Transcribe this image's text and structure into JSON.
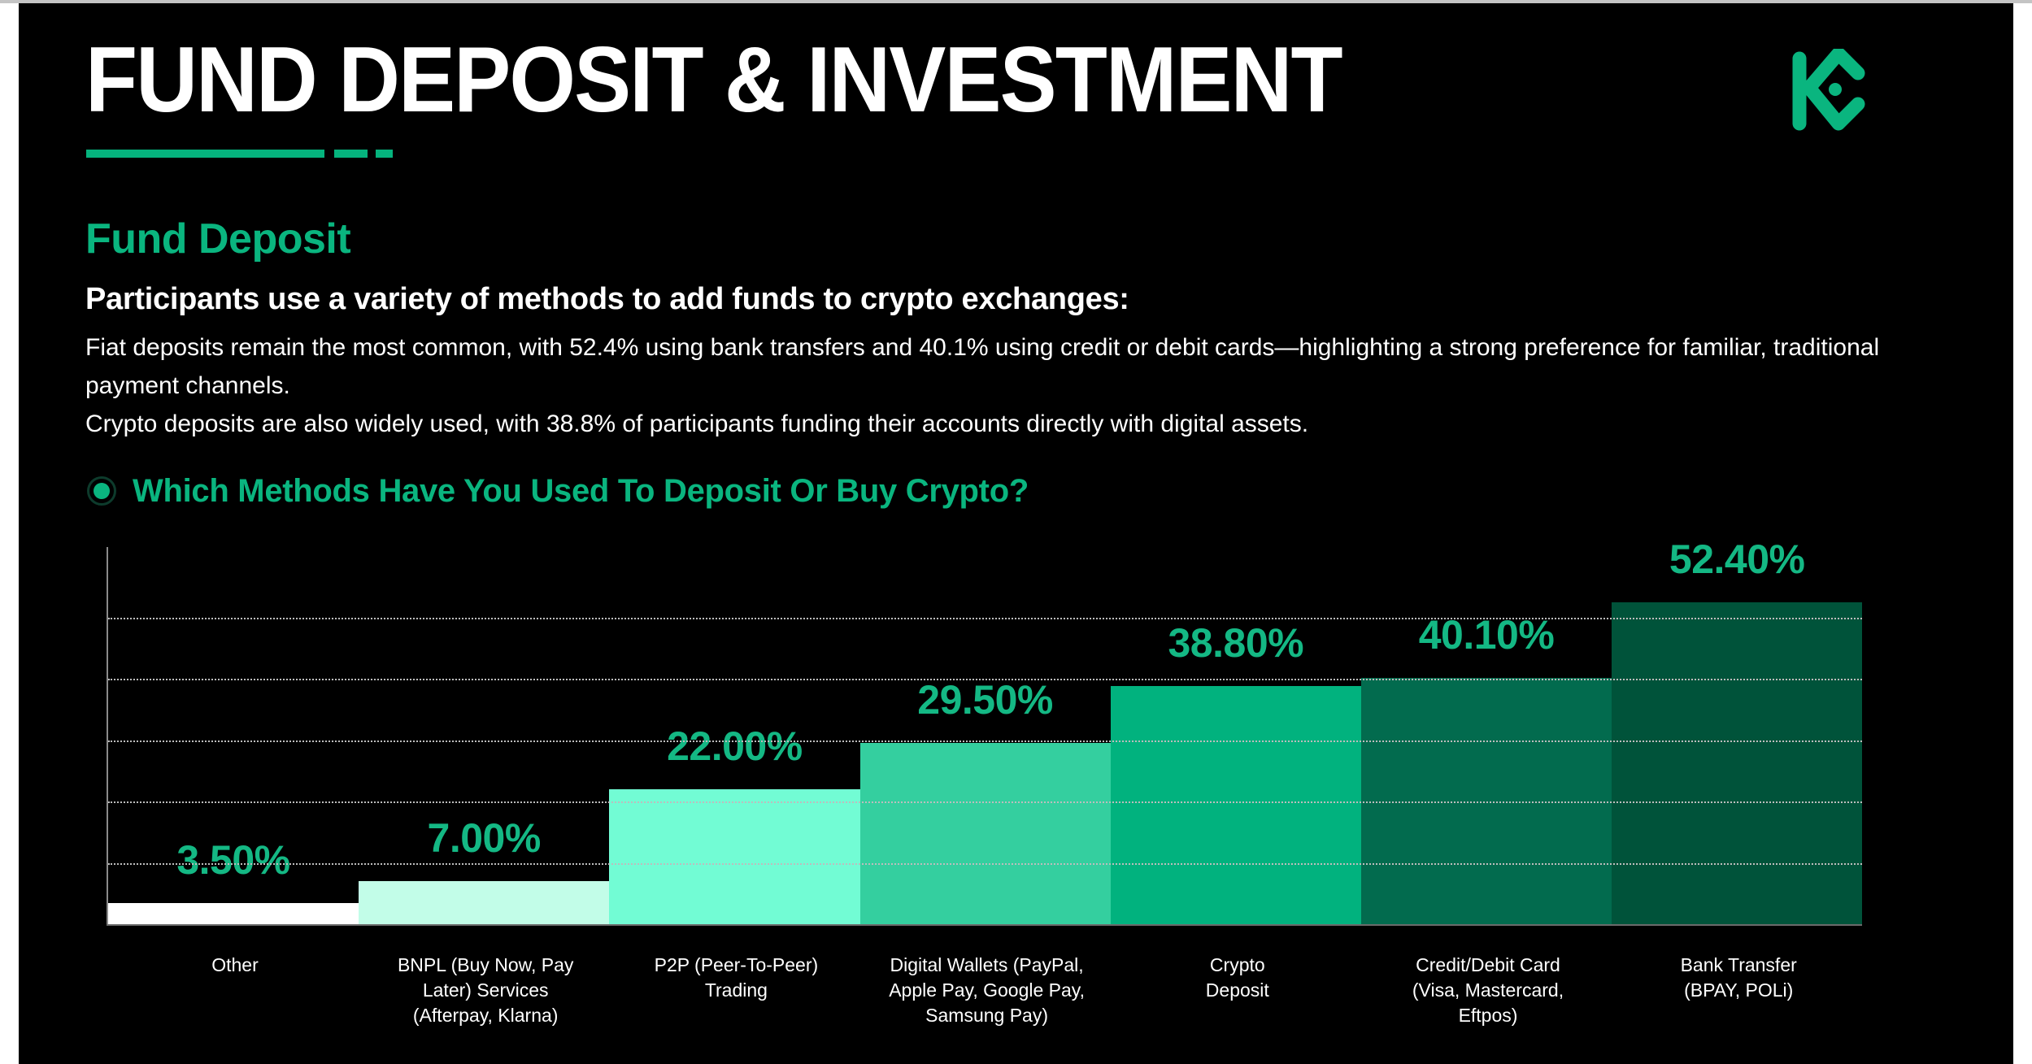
{
  "header": {
    "title": "FUND DEPOSIT & INVESTMENT",
    "logo": "kucoin-logo-icon"
  },
  "section": {
    "title": "Fund Deposit",
    "lead": "Participants use a variety of methods to add funds to crypto exchanges:",
    "paragraphs": [
      "Fiat deposits remain the most common, with 52.4% using bank transfers and 40.1% using credit or debit cards—highlighting a strong preference for familiar, traditional payment channels.",
      "Crypto deposits are also widely used, with 38.8% of participants funding their accounts directly with digital assets."
    ],
    "question": "Which Methods Have You Used To Deposit Or Buy Crypto?",
    "question_icon": "radio-selected-icon"
  },
  "colors": {
    "background": "#000000",
    "accent": "#0ab57f",
    "value_label": "#14b884",
    "bars": [
      "#ffffff",
      "#c2fde8",
      "#72fcd4",
      "#34cf9f",
      "#01b27e",
      "#026b4e",
      "#00533a"
    ]
  },
  "chart_data": {
    "type": "bar",
    "title": "Which Methods Have You Used To Deposit Or Buy Crypto?",
    "xlabel": "",
    "ylabel": "",
    "categories": [
      "Other",
      "BNPL (Buy Now, Pay Later) Services (Afterpay, Klarna)",
      "P2P (Peer-To-Peer) Trading",
      "Digital Wallets (PayPal, Apple Pay, Google Pay, Samsung Pay)",
      "Crypto Deposit",
      "Credit/Debit Card (Visa, Mastercard, Eftpos)",
      "Bank Transfer (BPAY, POLi)"
    ],
    "category_lines": [
      [
        "Other"
      ],
      [
        "BNPL (Buy Now, Pay",
        "Later) Services",
        "(Afterpay, Klarna)"
      ],
      [
        "P2P (Peer-To-Peer)",
        "Trading"
      ],
      [
        "Digital Wallets (PayPal,",
        "Apple Pay, Google Pay,",
        "Samsung Pay)"
      ],
      [
        "Crypto",
        "Deposit"
      ],
      [
        "Credit/Debit Card",
        "(Visa, Mastercard,",
        "Eftpos)"
      ],
      [
        "Bank Transfer",
        "(BPAY, POLi)"
      ]
    ],
    "values": [
      3.5,
      7.0,
      22.0,
      29.5,
      38.8,
      40.1,
      52.4
    ],
    "value_labels": [
      "3.50%",
      "7.00%",
      "22.00%",
      "29.50%",
      "38.80%",
      "40.10%",
      "52.40%"
    ],
    "ylim": [
      0,
      61
    ],
    "gridlines": [
      10,
      20,
      30,
      40,
      50
    ],
    "grid": true,
    "legend": null,
    "unit": "%"
  }
}
